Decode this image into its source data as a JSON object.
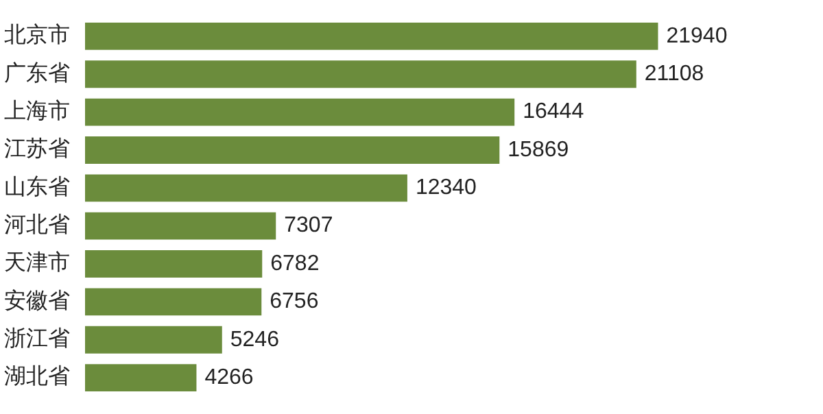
{
  "chart_data": {
    "type": "bar",
    "orientation": "horizontal",
    "categories": [
      "北京市",
      "广东省",
      "上海市",
      "江苏省",
      "山东省",
      "河北省",
      "天津市",
      "安徽省",
      "浙江省",
      "湖北省"
    ],
    "values": [
      21940,
      21108,
      16444,
      15869,
      12340,
      7307,
      6782,
      6756,
      5246,
      4266
    ],
    "color": "#6b8c3c",
    "data_labels": true,
    "legend": false,
    "tick_labels": "y"
  }
}
